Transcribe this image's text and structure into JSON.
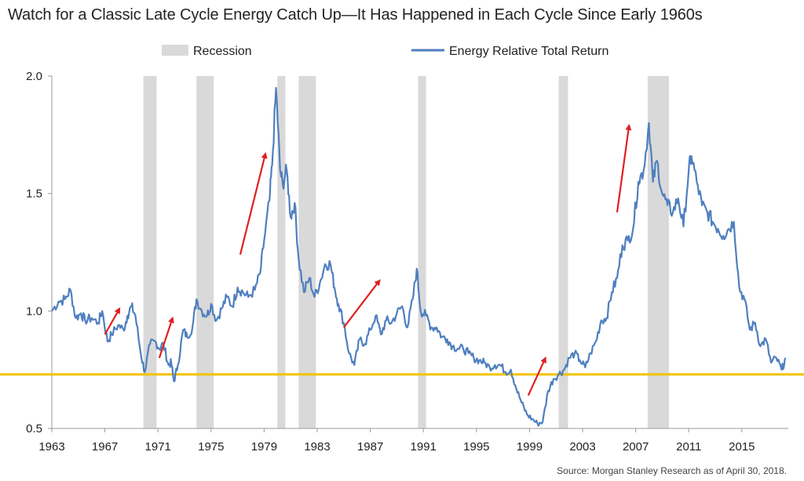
{
  "chart_data": {
    "type": "line",
    "title": "Watch for a Classic Late Cycle Energy Catch Up—It Has Happened in Each Cycle Since Early 1960s",
    "source": "Source: Morgan Stanley Research as of April 30, 2018.",
    "xlabel": "",
    "ylabel": "",
    "xlim": [
      1963,
      2018.5
    ],
    "ylim": [
      0.5,
      2.0
    ],
    "x_ticks": [
      "1963",
      "1967",
      "1971",
      "1975",
      "1979",
      "1983",
      "1987",
      "1991",
      "1995",
      "1999",
      "2003",
      "2007",
      "2011",
      "2015"
    ],
    "y_ticks": [
      "0.5",
      "1.0",
      "1.5",
      "2.0"
    ],
    "grid": false,
    "legend": {
      "placement": "top",
      "entries": [
        {
          "label": "Recession",
          "color": "#d9d9d9",
          "kind": "band"
        },
        {
          "label": "Energy Relative Total Return",
          "color": "#4f7fbf",
          "kind": "line"
        }
      ]
    },
    "colors": {
      "line": "#4f7fbf",
      "recession": "#d9d9d9",
      "reference_line": "#f2c200",
      "arrow": "#e02020"
    },
    "recessions": [
      [
        1969.9,
        1970.9
      ],
      [
        1973.9,
        1975.2
      ],
      [
        1980.0,
        1980.6
      ],
      [
        1981.6,
        1982.9
      ],
      [
        1990.6,
        1991.2
      ],
      [
        2001.2,
        2001.9
      ],
      [
        2007.9,
        2009.5
      ]
    ],
    "reference_line": {
      "y": 0.73
    },
    "series": [
      {
        "name": "Energy Relative Total Return",
        "x": [
          1963.0,
          1963.5,
          1964.0,
          1964.4,
          1964.8,
          1965.2,
          1965.5,
          1966.0,
          1966.5,
          1966.8,
          1967.2,
          1967.5,
          1968.0,
          1968.4,
          1968.7,
          1969.0,
          1969.3,
          1969.7,
          1970.0,
          1970.4,
          1970.8,
          1971.1,
          1971.4,
          1971.8,
          1972.0,
          1972.2,
          1972.5,
          1972.9,
          1973.2,
          1973.6,
          1973.9,
          1974.3,
          1974.7,
          1975.0,
          1975.4,
          1975.8,
          1976.2,
          1976.6,
          1977.0,
          1977.4,
          1977.8,
          1978.3,
          1978.7,
          1979.0,
          1979.4,
          1979.6,
          1979.9,
          1980.2,
          1980.4,
          1980.7,
          1981.0,
          1981.3,
          1981.6,
          1982.0,
          1982.4,
          1982.8,
          1983.2,
          1983.6,
          1984.0,
          1984.3,
          1984.6,
          1985.0,
          1985.4,
          1985.8,
          1986.2,
          1986.6,
          1987.0,
          1987.4,
          1987.8,
          1988.2,
          1988.6,
          1989.0,
          1989.4,
          1989.8,
          1990.2,
          1990.5,
          1990.8,
          1991.2,
          1991.6,
          1992.0,
          1992.4,
          1992.8,
          1993.2,
          1993.6,
          1994.0,
          1994.4,
          1994.8,
          1995.2,
          1995.6,
          1996.0,
          1996.4,
          1996.8,
          1997.2,
          1997.6,
          1998.0,
          1998.4,
          1998.8,
          1999.2,
          1999.6,
          2000.0,
          2000.4,
          2000.8,
          2001.2,
          2001.6,
          2002.0,
          2002.4,
          2002.8,
          2003.2,
          2003.6,
          2004.0,
          2004.4,
          2004.8,
          2005.2,
          2005.6,
          2006.0,
          2006.4,
          2006.8,
          2007.2,
          2007.6,
          2008.0,
          2008.3,
          2008.6,
          2009.0,
          2009.4,
          2009.8,
          2010.2,
          2010.6,
          2011.0,
          2011.2,
          2011.6,
          2012.0,
          2012.4,
          2012.8,
          2013.2,
          2013.6,
          2014.0,
          2014.4,
          2014.8,
          2015.2,
          2015.6,
          2016.0,
          2016.4,
          2016.8,
          2017.2,
          2017.6,
          2018.0,
          2018.3
        ],
        "values": [
          1.0,
          1.04,
          1.05,
          1.09,
          0.97,
          0.99,
          0.96,
          0.97,
          0.95,
          1.0,
          0.87,
          0.9,
          0.94,
          0.92,
          0.98,
          1.02,
          0.98,
          0.82,
          0.74,
          0.86,
          0.87,
          0.84,
          0.86,
          0.77,
          0.78,
          0.7,
          0.77,
          0.92,
          0.89,
          0.93,
          1.05,
          1.0,
          0.98,
          1.03,
          0.96,
          1.01,
          1.06,
          1.02,
          1.1,
          1.08,
          1.06,
          1.09,
          1.16,
          1.3,
          1.47,
          1.62,
          1.95,
          1.6,
          1.54,
          1.6,
          1.4,
          1.46,
          1.22,
          1.08,
          1.14,
          1.06,
          1.12,
          1.2,
          1.2,
          1.1,
          1.03,
          0.95,
          0.82,
          0.77,
          0.88,
          0.86,
          0.92,
          0.98,
          0.9,
          0.96,
          0.95,
          0.99,
          1.02,
          0.93,
          1.05,
          1.18,
          1.0,
          0.98,
          0.93,
          0.93,
          0.89,
          0.88,
          0.85,
          0.84,
          0.84,
          0.82,
          0.8,
          0.79,
          0.78,
          0.76,
          0.77,
          0.77,
          0.74,
          0.75,
          0.67,
          0.61,
          0.56,
          0.54,
          0.52,
          0.53,
          0.66,
          0.71,
          0.73,
          0.75,
          0.8,
          0.82,
          0.79,
          0.76,
          0.82,
          0.87,
          0.96,
          0.97,
          1.08,
          1.14,
          1.28,
          1.3,
          1.35,
          1.55,
          1.6,
          1.8,
          1.55,
          1.64,
          1.5,
          1.45,
          1.42,
          1.48,
          1.36,
          1.6,
          1.66,
          1.55,
          1.45,
          1.42,
          1.38,
          1.35,
          1.32,
          1.35,
          1.38,
          1.1,
          1.05,
          0.92,
          0.95,
          0.85,
          0.88,
          0.78,
          0.8,
          0.75,
          0.8
        ]
      }
    ],
    "annotations": [
      {
        "kind": "arrow",
        "from": [
          1967.0,
          0.9
        ],
        "to": [
          1968.1,
          1.01
        ]
      },
      {
        "kind": "arrow",
        "from": [
          1971.1,
          0.8
        ],
        "to": [
          1972.1,
          0.97
        ]
      },
      {
        "kind": "arrow",
        "from": [
          1977.2,
          1.24
        ],
        "to": [
          1979.1,
          1.67
        ]
      },
      {
        "kind": "arrow",
        "from": [
          1985.0,
          0.93
        ],
        "to": [
          1987.7,
          1.13
        ]
      },
      {
        "kind": "arrow",
        "from": [
          1998.9,
          0.64
        ],
        "to": [
          2000.2,
          0.8
        ]
      },
      {
        "kind": "arrow",
        "from": [
          2005.6,
          1.42
        ],
        "to": [
          2006.5,
          1.79
        ]
      }
    ]
  }
}
